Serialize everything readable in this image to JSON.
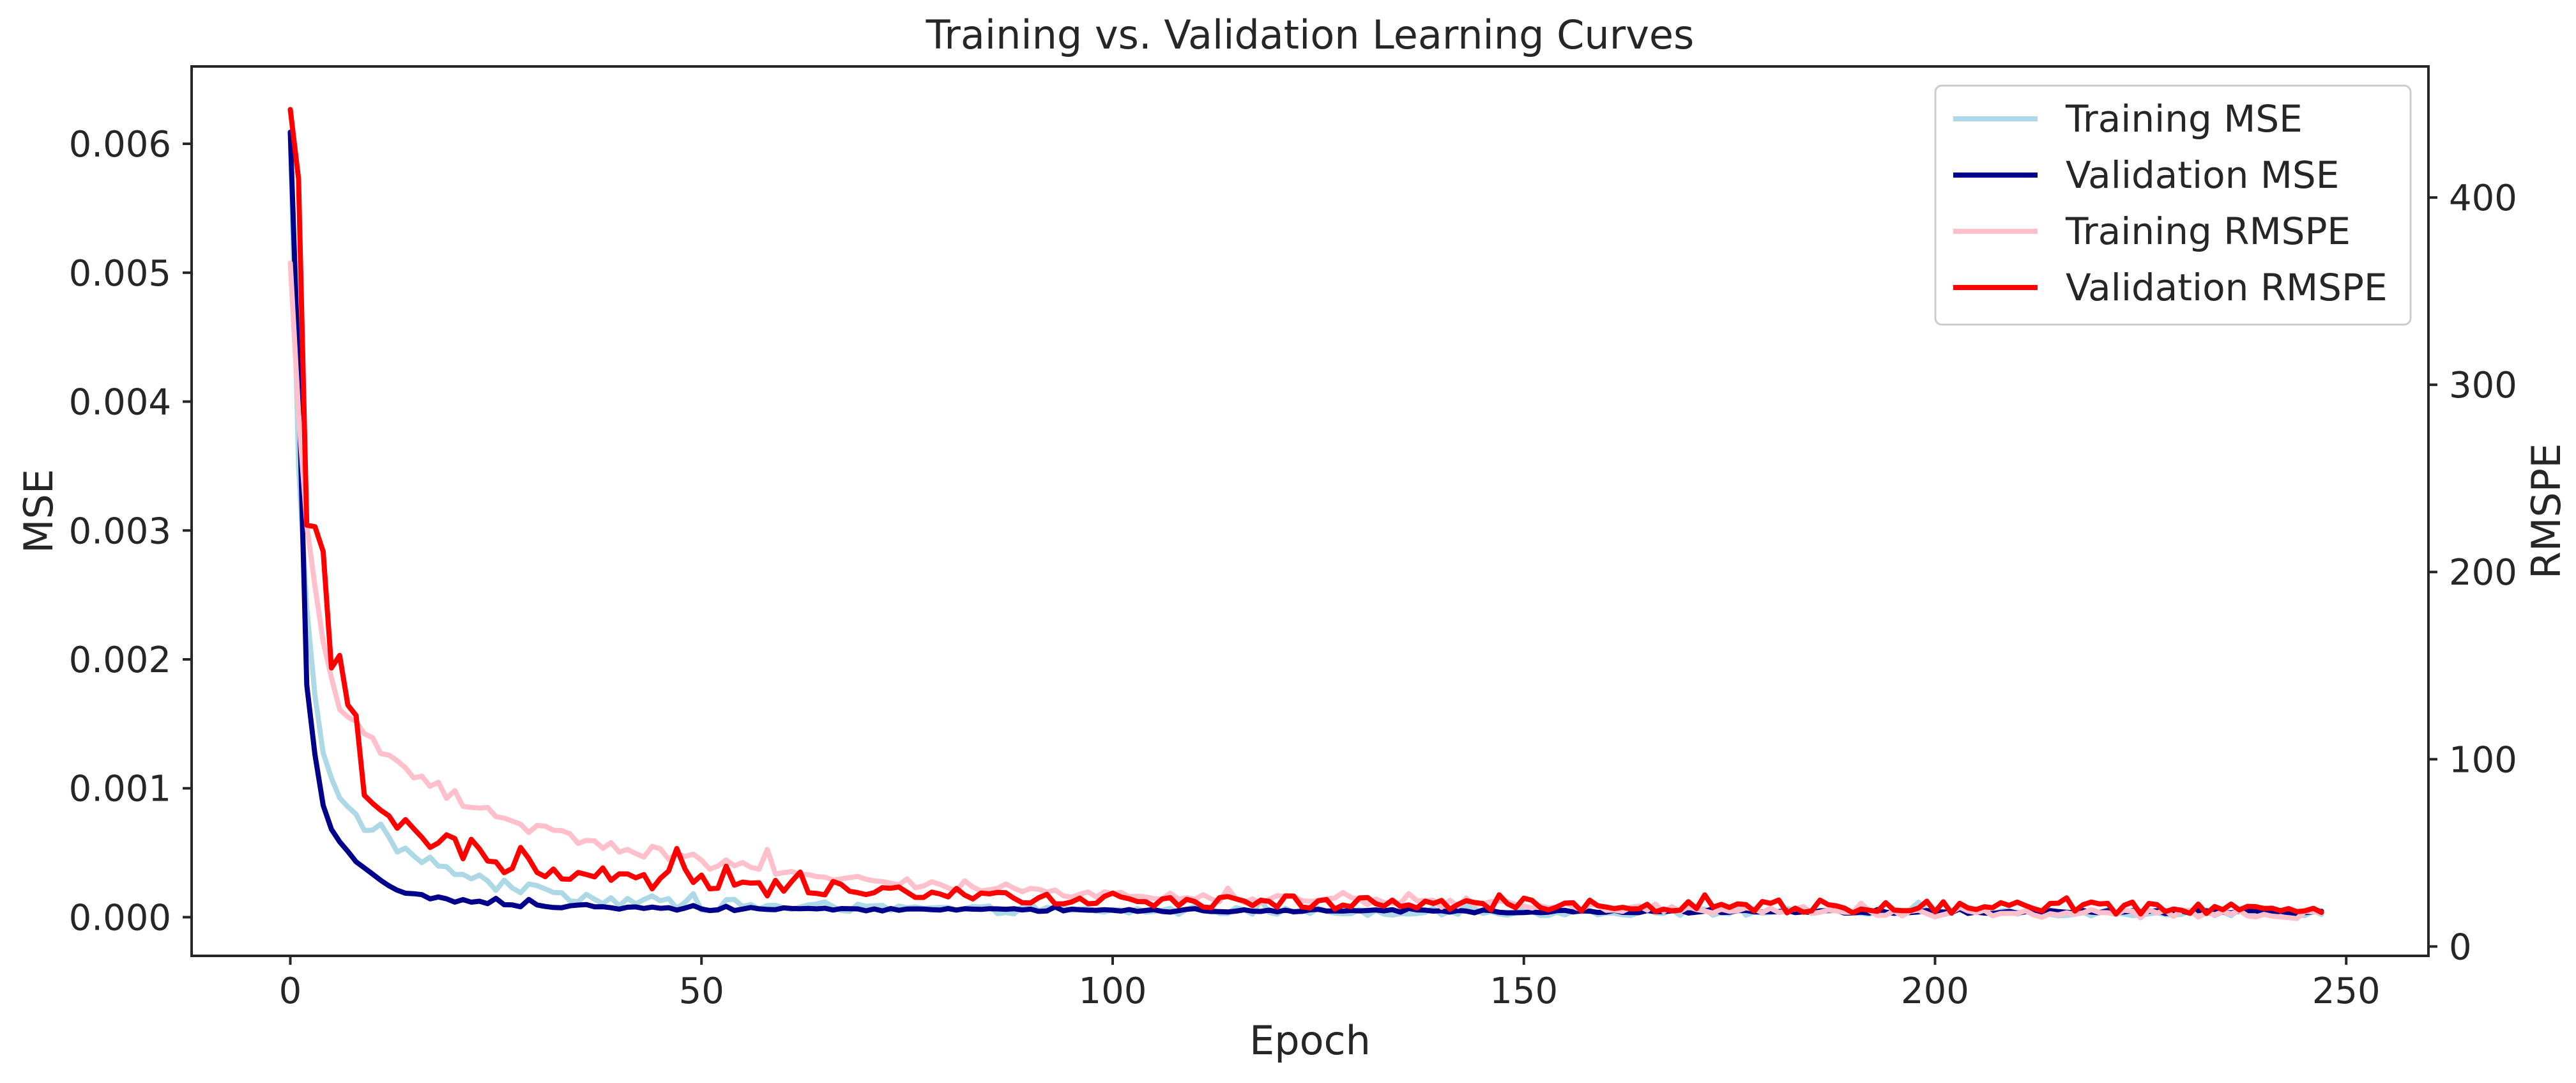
{
  "chart_data": {
    "type": "line",
    "title": "Training vs. Validation Learning Curves",
    "xlabel": "Epoch",
    "ylabel_left": "MSE",
    "ylabel_right": "RMSPE",
    "xlim": [
      -12,
      260
    ],
    "ylim_left": [
      -0.0003,
      0.0066
    ],
    "ylim_right": [
      -5,
      470
    ],
    "x_ticks": [
      0,
      50,
      100,
      150,
      200,
      250
    ],
    "y_left_ticks": [
      0.0,
      0.001,
      0.002,
      0.003,
      0.004,
      0.005,
      0.006
    ],
    "y_left_tick_labels": [
      "0.000",
      "0.001",
      "0.002",
      "0.003",
      "0.004",
      "0.005",
      "0.006"
    ],
    "y_right_ticks": [
      0,
      100,
      200,
      300,
      400
    ],
    "y_right_tick_labels": [
      "0",
      "100",
      "200",
      "300",
      "400"
    ],
    "grid": false,
    "legend_position": "top-right",
    "epochs": 248,
    "series": [
      {
        "name": "Training MSE",
        "axis": "left",
        "color": "#add8e6",
        "anchors": [
          [
            0,
            0.00609
          ],
          [
            1,
            0.0035
          ],
          [
            2,
            0.0024
          ],
          [
            3,
            0.0017
          ],
          [
            4,
            0.00125
          ],
          [
            5,
            0.00105
          ],
          [
            6,
            0.00095
          ],
          [
            7,
            0.00088
          ],
          [
            8,
            0.00078
          ],
          [
            10,
            0.00065
          ],
          [
            12,
            0.00058
          ],
          [
            15,
            0.00048
          ],
          [
            20,
            0.00035
          ],
          [
            25,
            0.00025
          ],
          [
            30,
            0.0002
          ],
          [
            40,
            0.00013
          ],
          [
            50,
            0.0001
          ],
          [
            60,
            8e-05
          ],
          [
            80,
            6e-05
          ],
          [
            100,
            5e-05
          ],
          [
            150,
            4e-05
          ],
          [
            200,
            4e-05
          ],
          [
            247,
            3.5e-05
          ]
        ],
        "noise": 3e-05
      },
      {
        "name": "Validation MSE",
        "axis": "left",
        "color": "#00008b",
        "anchors": [
          [
            0,
            0.00609
          ],
          [
            1,
            0.0042
          ],
          [
            2,
            0.0018
          ],
          [
            3,
            0.00125
          ],
          [
            4,
            0.00085
          ],
          [
            5,
            0.00068
          ],
          [
            6,
            0.00058
          ],
          [
            7,
            0.0005
          ],
          [
            8,
            0.00042
          ],
          [
            10,
            0.00032
          ],
          [
            12,
            0.00025
          ],
          [
            15,
            0.00018
          ],
          [
            20,
            0.00013
          ],
          [
            25,
            0.0001
          ],
          [
            30,
            9e-05
          ],
          [
            40,
            8e-05
          ],
          [
            50,
            7e-05
          ],
          [
            70,
            6e-05
          ],
          [
            100,
            5e-05
          ],
          [
            150,
            4.5e-05
          ],
          [
            200,
            4e-05
          ],
          [
            247,
            4e-05
          ]
        ],
        "noise": 1.2e-05
      },
      {
        "name": "Training RMSPE",
        "axis": "right",
        "color": "#ffc0cb",
        "anchors": [
          [
            0,
            365
          ],
          [
            1,
            285
          ],
          [
            2,
            225
          ],
          [
            3,
            190
          ],
          [
            4,
            165
          ],
          [
            5,
            145
          ],
          [
            6,
            130
          ],
          [
            8,
            118
          ],
          [
            10,
            108
          ],
          [
            12,
            100
          ],
          [
            15,
            92
          ],
          [
            20,
            80
          ],
          [
            25,
            70
          ],
          [
            30,
            63
          ],
          [
            40,
            53
          ],
          [
            50,
            45
          ],
          [
            60,
            40
          ],
          [
            70,
            36
          ],
          [
            80,
            32
          ],
          [
            90,
            29
          ],
          [
            100,
            27
          ],
          [
            130,
            24
          ],
          [
            160,
            21
          ],
          [
            200,
            18
          ],
          [
            247,
            17
          ]
        ],
        "noise": 2.2
      },
      {
        "name": "Validation RMSPE",
        "axis": "right",
        "color": "#ff0000",
        "anchors": [
          [
            0,
            447
          ],
          [
            1,
            410
          ],
          [
            2,
            225
          ],
          [
            3,
            215
          ],
          [
            4,
            200
          ],
          [
            5,
            150
          ],
          [
            6,
            152
          ],
          [
            7,
            125
          ],
          [
            8,
            125
          ],
          [
            9,
            85
          ],
          [
            10,
            80
          ],
          [
            12,
            70
          ],
          [
            15,
            60
          ],
          [
            20,
            52
          ],
          [
            25,
            45
          ],
          [
            30,
            41
          ],
          [
            40,
            37
          ],
          [
            50,
            34
          ],
          [
            60,
            32
          ],
          [
            70,
            30
          ],
          [
            80,
            28
          ],
          [
            90,
            26
          ],
          [
            100,
            25
          ],
          [
            130,
            23
          ],
          [
            160,
            22
          ],
          [
            200,
            21
          ],
          [
            240,
            20
          ],
          [
            247,
            20
          ]
        ],
        "noise": 3.5
      }
    ]
  }
}
